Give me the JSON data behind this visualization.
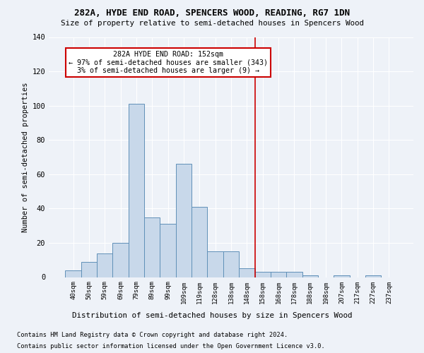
{
  "title": "282A, HYDE END ROAD, SPENCERS WOOD, READING, RG7 1DN",
  "subtitle": "Size of property relative to semi-detached houses in Spencers Wood",
  "xlabel_bottom": "Distribution of semi-detached houses by size in Spencers Wood",
  "ylabel": "Number of semi-detached properties",
  "footer1": "Contains HM Land Registry data © Crown copyright and database right 2024.",
  "footer2": "Contains public sector information licensed under the Open Government Licence v3.0.",
  "bar_labels": [
    "40sqm",
    "50sqm",
    "59sqm",
    "69sqm",
    "79sqm",
    "89sqm",
    "99sqm",
    "109sqm",
    "119sqm",
    "128sqm",
    "138sqm",
    "148sqm",
    "158sqm",
    "168sqm",
    "178sqm",
    "188sqm",
    "198sqm",
    "207sqm",
    "217sqm",
    "227sqm",
    "237sqm"
  ],
  "bar_values": [
    4,
    9,
    14,
    20,
    101,
    35,
    31,
    66,
    41,
    15,
    15,
    5,
    3,
    3,
    3,
    1,
    0,
    1,
    0,
    1,
    0
  ],
  "bar_color": "#c8d8ea",
  "bar_edge_color": "#6090b8",
  "background_color": "#eef2f8",
  "grid_color": "#ffffff",
  "annotation_text_line1": "282A HYDE END ROAD: 152sqm",
  "annotation_text_line2": "← 97% of semi-detached houses are smaller (343)",
  "annotation_text_line3": "3% of semi-detached houses are larger (9) →",
  "vline_color": "#cc0000",
  "annotation_box_color": "#ffffff",
  "annotation_box_edge": "#cc0000",
  "vline_bar_index": 12,
  "ylim": [
    0,
    140
  ],
  "yticks": [
    0,
    20,
    40,
    60,
    80,
    100,
    120,
    140
  ]
}
